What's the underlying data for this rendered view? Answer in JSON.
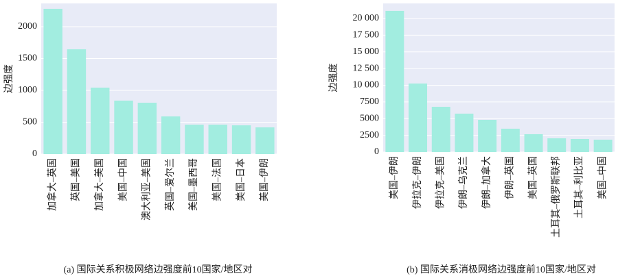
{
  "chart_data": [
    {
      "type": "bar",
      "caption": "(a) 国际关系积极网络边强度前10国家/地区对",
      "y_label": "边强度",
      "categories": [
        "加拿大–英国",
        "英国–美国",
        "加拿大–美国",
        "美国–中国",
        "澳大利亚–美国",
        "英国–爱尔兰",
        "美国–墨西哥",
        "美国–法国",
        "美国–日本",
        "美国–伊朗"
      ],
      "values": [
        2280,
        1645,
        1043,
        839,
        806,
        591,
        462,
        462,
        451,
        419
      ],
      "color": "#a2ede0",
      "ylim": [
        0,
        2365
      ],
      "yticks": [
        0,
        500,
        1000,
        1500,
        2000
      ],
      "grid": true
    },
    {
      "type": "bar",
      "caption": "(b) 国际关系消极网络边强度前10国家/地区对",
      "y_label": "边强度",
      "categories": [
        "美国–伊朗",
        "伊拉克–伊朗",
        "伊拉克–美国",
        "伊朗–乌克兰",
        "伊朗–加拿大",
        "伊朗–英国",
        "美国–英国",
        "土耳其–俄罗斯联邦",
        "土耳其–利比亚",
        "美国–中国"
      ],
      "values": [
        21130,
        10256,
        6770,
        5744,
        4820,
        3490,
        2670,
        2050,
        1950,
        1850
      ],
      "color": "#a2ede0",
      "ylim": [
        0,
        22250
      ],
      "yticks": [
        0,
        2500,
        5000,
        7500,
        {
          "value": 10000,
          "label": "10 000"
        },
        {
          "value": 12500,
          "label": "12 500"
        },
        {
          "value": 15000,
          "label": "15 000"
        },
        {
          "value": 17500,
          "label": "17 500"
        },
        {
          "value": 20000,
          "label": "20 000"
        }
      ],
      "grid": true
    }
  ]
}
